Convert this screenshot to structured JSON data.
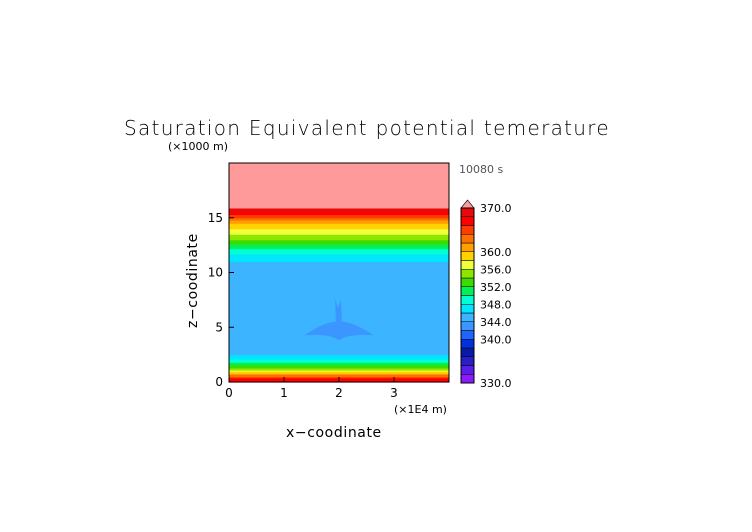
{
  "chart_data": {
    "type": "heatmap",
    "title": "Saturation Equivalent potential temerature",
    "xlabel": "x−coodinate",
    "ylabel": "z−coodinate",
    "x_unit": "(×1E4 m)",
    "y_unit": "(×1000 m)",
    "time_label": "10080 s",
    "xlim": [
      0,
      4
    ],
    "ylim": [
      0,
      20
    ],
    "x_ticks": [
      "0",
      "1",
      "2",
      "3"
    ],
    "y_ticks": [
      "0",
      "5",
      "10",
      "15"
    ],
    "colorbar": {
      "range": [
        330,
        370
      ],
      "levels": [
        330,
        332,
        334,
        336,
        338,
        340,
        342,
        344,
        346,
        348,
        350,
        352,
        354,
        356,
        358,
        360,
        362,
        364,
        366,
        368,
        370
      ],
      "colors": [
        "#8c1aff",
        "#5a1ee6",
        "#2a1ec8",
        "#0a1aa8",
        "#0032dc",
        "#1e64ff",
        "#3c96ff",
        "#3cb4ff",
        "#00e6ff",
        "#00ffd2",
        "#00f05a",
        "#3cdc00",
        "#8ce600",
        "#f0ff3c",
        "#ffd200",
        "#ffa000",
        "#ff6e00",
        "#ff3c00",
        "#ff0000",
        "#e60a0a"
      ],
      "extend_max_color": "#ff9a9a",
      "tick_labels": [
        "370.0",
        "360.0",
        "356.0",
        "352.0",
        "348.0",
        "344.0",
        "340.0",
        "330.0"
      ]
    },
    "vertical_profile": [
      {
        "z": 0.0,
        "v": 367
      },
      {
        "z": 0.4,
        "v": 366
      },
      {
        "z": 0.8,
        "v": 360
      },
      {
        "z": 1.2,
        "v": 355
      },
      {
        "z": 1.6,
        "v": 352
      },
      {
        "z": 1.9,
        "v": 349
      },
      {
        "z": 2.2,
        "v": 347
      },
      {
        "z": 2.6,
        "v": 345.5
      },
      {
        "z": 3.0,
        "v": 344.5
      },
      {
        "z": 4.0,
        "v": 344.3
      },
      {
        "z": 6.0,
        "v": 344.2
      },
      {
        "z": 8.0,
        "v": 344.3
      },
      {
        "z": 10.0,
        "v": 345
      },
      {
        "z": 11.0,
        "v": 346
      },
      {
        "z": 11.6,
        "v": 347.5
      },
      {
        "z": 12.0,
        "v": 349
      },
      {
        "z": 12.4,
        "v": 351
      },
      {
        "z": 12.8,
        "v": 353
      },
      {
        "z": 13.3,
        "v": 355
      },
      {
        "z": 13.8,
        "v": 357
      },
      {
        "z": 14.3,
        "v": 359
      },
      {
        "z": 14.7,
        "v": 361.5
      },
      {
        "z": 15.0,
        "v": 364
      },
      {
        "z": 15.3,
        "v": 366
      },
      {
        "z": 15.6,
        "v": 368
      },
      {
        "z": 16.0,
        "v": 370.5
      },
      {
        "z": 20.0,
        "v": 372
      }
    ],
    "anomaly": {
      "center_x": 2.0,
      "center_z": 4.8,
      "half_width_x": 0.45,
      "half_height_z": 0.9,
      "value": 342.6
    }
  }
}
